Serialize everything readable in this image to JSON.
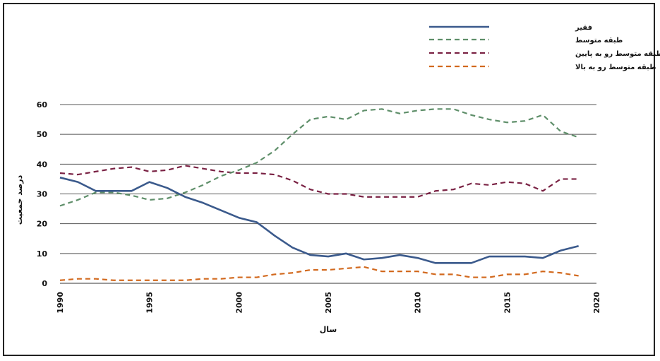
{
  "chart_data": {
    "type": "line",
    "title": "",
    "xlabel": "سال",
    "ylabel": "درصد جمعیت",
    "xlim": [
      1990,
      2020
    ],
    "ylim": [
      0,
      60
    ],
    "x_ticks": [
      1990,
      1995,
      2000,
      2005,
      2010,
      2015,
      2020
    ],
    "y_ticks": [
      0,
      10,
      20,
      30,
      40,
      50,
      60
    ],
    "grid": "horizontal",
    "legend_position": "top-right",
    "series": [
      {
        "name": "فقیر",
        "color": "#3b5a8c",
        "style": "solid",
        "x": [
          1990,
          1991,
          1992,
          1993,
          1994,
          1995,
          1996,
          1997,
          1998,
          1999,
          2000,
          2001,
          2002,
          2003,
          2004,
          2005,
          2006,
          2007,
          2008,
          2009,
          2010,
          2011,
          2012,
          2013,
          2014,
          2015,
          2016,
          2017,
          2018,
          2019
        ],
        "values": [
          35.5,
          34,
          31,
          31,
          31,
          34,
          32,
          29,
          27,
          24.5,
          22,
          20.5,
          16,
          12,
          9.5,
          9,
          10,
          8,
          8.5,
          9.5,
          8.5,
          6.8,
          6.8,
          6.8,
          9,
          9,
          9,
          8.5,
          11,
          12.5
        ]
      },
      {
        "name": "طبقه متوسط",
        "color": "#5f8f6a",
        "style": "dashed",
        "x": [
          1990,
          1991,
          1992,
          1993,
          1994,
          1995,
          1996,
          1997,
          1998,
          1999,
          2000,
          2001,
          2002,
          2003,
          2004,
          2005,
          2006,
          2007,
          2008,
          2009,
          2010,
          2011,
          2012,
          2013,
          2014,
          2015,
          2016,
          2017,
          2018,
          2019
        ],
        "values": [
          26,
          28,
          30.5,
          30.5,
          29.5,
          28,
          28.5,
          30.5,
          33,
          36,
          38,
          40.5,
          44.5,
          50,
          55,
          56,
          55,
          58,
          58.5,
          57,
          58,
          58.5,
          58.5,
          56.5,
          55,
          54,
          54.5,
          56.5,
          51,
          49
        ]
      },
      {
        "name": "طبقه متوسط رو به پایین",
        "color": "#7a2244",
        "style": "dashed",
        "x": [
          1990,
          1991,
          1992,
          1993,
          1994,
          1995,
          1996,
          1997,
          1998,
          1999,
          2000,
          2001,
          2002,
          2003,
          2004,
          2005,
          2006,
          2007,
          2008,
          2009,
          2010,
          2011,
          2012,
          2013,
          2014,
          2015,
          2016,
          2017,
          2018,
          2019
        ],
        "values": [
          37,
          36.5,
          37.5,
          38.5,
          39,
          37.5,
          38,
          39.5,
          38.5,
          37.5,
          37,
          37,
          36.5,
          34.5,
          31.5,
          30,
          30,
          29,
          29,
          29,
          29,
          31,
          31.5,
          33.5,
          33,
          34,
          33.5,
          31,
          35,
          35
        ]
      },
      {
        "name": "طبقه متوسط رو به بالا",
        "color": "#d2691e",
        "style": "dashed",
        "x": [
          1990,
          1991,
          1992,
          1993,
          1994,
          1995,
          1996,
          1997,
          1998,
          1999,
          2000,
          2001,
          2002,
          2003,
          2004,
          2005,
          2006,
          2007,
          2008,
          2009,
          2010,
          2011,
          2012,
          2013,
          2014,
          2015,
          2016,
          2017,
          2018,
          2019
        ],
        "values": [
          1,
          1.5,
          1.5,
          1,
          1,
          1,
          1,
          1,
          1.5,
          1.5,
          2,
          2,
          3,
          3.5,
          4.5,
          4.5,
          5,
          5.5,
          4,
          4,
          4,
          3,
          3,
          2,
          2,
          3,
          3,
          4,
          3.5,
          2.5
        ]
      }
    ]
  }
}
